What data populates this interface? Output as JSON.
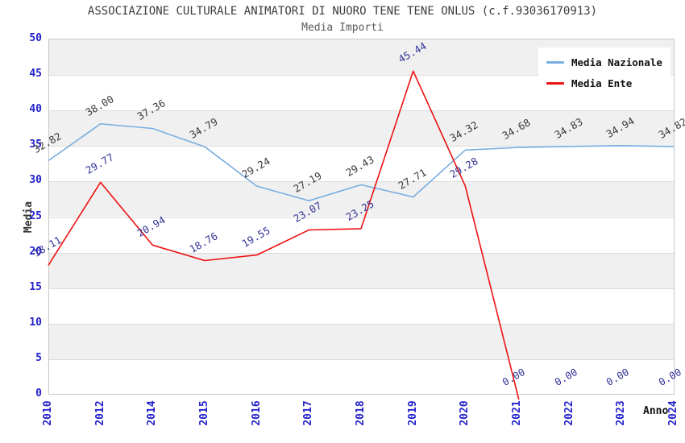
{
  "chart_data": {
    "type": "line",
    "title": "ASSOCIAZIONE CULTURALE ANIMATORI DI NUORO TENE TENE ONLUS (c.f.93036170913)",
    "subtitle": "Media Importi",
    "xlabel": "Anno",
    "ylabel": "Media",
    "ylim": [
      0,
      50
    ],
    "yticks": [
      0,
      5,
      10,
      15,
      20,
      25,
      30,
      35,
      40,
      45,
      50
    ],
    "grid": "horizontal-bands-alternating",
    "legend_position": "top-right",
    "categories": [
      "2010",
      "2012",
      "2014",
      "2015",
      "2016",
      "2017",
      "2018",
      "2019",
      "2020",
      "2021",
      "2022",
      "2023",
      "2024"
    ],
    "series": [
      {
        "name": "Media Nazionale",
        "color": "#79AEE0",
        "label_color": "#3a3a3a",
        "values": [
          32.82,
          38.0,
          37.36,
          34.79,
          29.24,
          27.19,
          29.43,
          27.71,
          34.32,
          34.68,
          34.83,
          34.94,
          34.82
        ]
      },
      {
        "name": "Media Ente",
        "color": "#ED1111",
        "label_color": "#333399",
        "values": [
          18.11,
          29.77,
          20.94,
          18.76,
          19.55,
          23.07,
          23.25,
          45.44,
          29.28,
          0.0,
          0.0,
          0.0,
          0.0
        ],
        "line_drawn_through_index": 9
      }
    ],
    "colors": {
      "tick_label": "#2222CC",
      "band_gray": "#F0F0F0",
      "band_white": "#FFFFFF",
      "gridline": "#DCDCDC",
      "plot_border": "#C8C8C8"
    }
  }
}
